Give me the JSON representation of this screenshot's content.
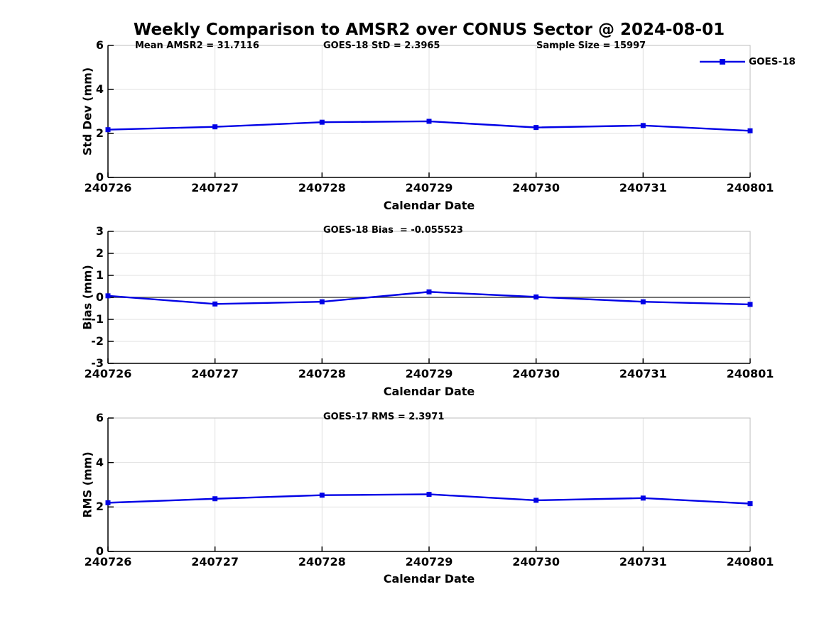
{
  "title": "Weekly Comparison to AMSR2 over CONUS Sector @ 2024-08-01",
  "x_label": "Calendar Date",
  "categories": [
    "240726",
    "240727",
    "240728",
    "240729",
    "240730",
    "240731",
    "240801"
  ],
  "legend": {
    "label": "GOES-18",
    "position": "top-right-outside"
  },
  "colors": {
    "line": "#0000E6",
    "grid": "#E0E0E0",
    "box": "#BDBDBD",
    "axis": "#000000",
    "zero": "#606060",
    "text": "#000000",
    "background": "#FFFFFF"
  },
  "chart_data": [
    {
      "type": "line",
      "series_name": "GOES-18",
      "ylabel": "Std Dev (mm)",
      "xlabel": "Calendar Date",
      "ylim": [
        0,
        6
      ],
      "yticks": [
        0,
        2,
        4,
        6
      ],
      "x": [
        "240726",
        "240727",
        "240728",
        "240729",
        "240730",
        "240731",
        "240801"
      ],
      "values": [
        2.17,
        2.3,
        2.51,
        2.55,
        2.27,
        2.36,
        2.12
      ],
      "annotations": [
        "Mean AMSR2 = 31.7116",
        "GOES-18 StD = 2.3965",
        "Sample Size = 15997"
      ],
      "grid": true,
      "zero_line": false,
      "legend": true
    },
    {
      "type": "line",
      "series_name": "GOES-18",
      "ylabel": "Bias (mm)",
      "xlabel": "Calendar Date",
      "ylim": [
        -3,
        3
      ],
      "yticks": [
        -3,
        -2,
        -1,
        0,
        1,
        2,
        3
      ],
      "x": [
        "240726",
        "240727",
        "240728",
        "240729",
        "240730",
        "240731",
        "240801"
      ],
      "values": [
        0.07,
        -0.3,
        -0.2,
        0.25,
        0.02,
        -0.2,
        -0.32
      ],
      "annotations": [
        "GOES-18 Bias  = -0.055523"
      ],
      "grid": true,
      "zero_line": true,
      "legend": false
    },
    {
      "type": "line",
      "series_name": "GOES-18",
      "ylabel": "RMS (mm)",
      "xlabel": "Calendar Date",
      "ylim": [
        0,
        6
      ],
      "yticks": [
        0,
        2,
        4,
        6
      ],
      "x": [
        "240726",
        "240727",
        "240728",
        "240729",
        "240730",
        "240731",
        "240801"
      ],
      "values": [
        2.19,
        2.37,
        2.53,
        2.57,
        2.3,
        2.4,
        2.15
      ],
      "annotations": [
        "GOES-17 RMS = 2.3971"
      ],
      "grid": true,
      "zero_line": false,
      "legend": false
    }
  ]
}
